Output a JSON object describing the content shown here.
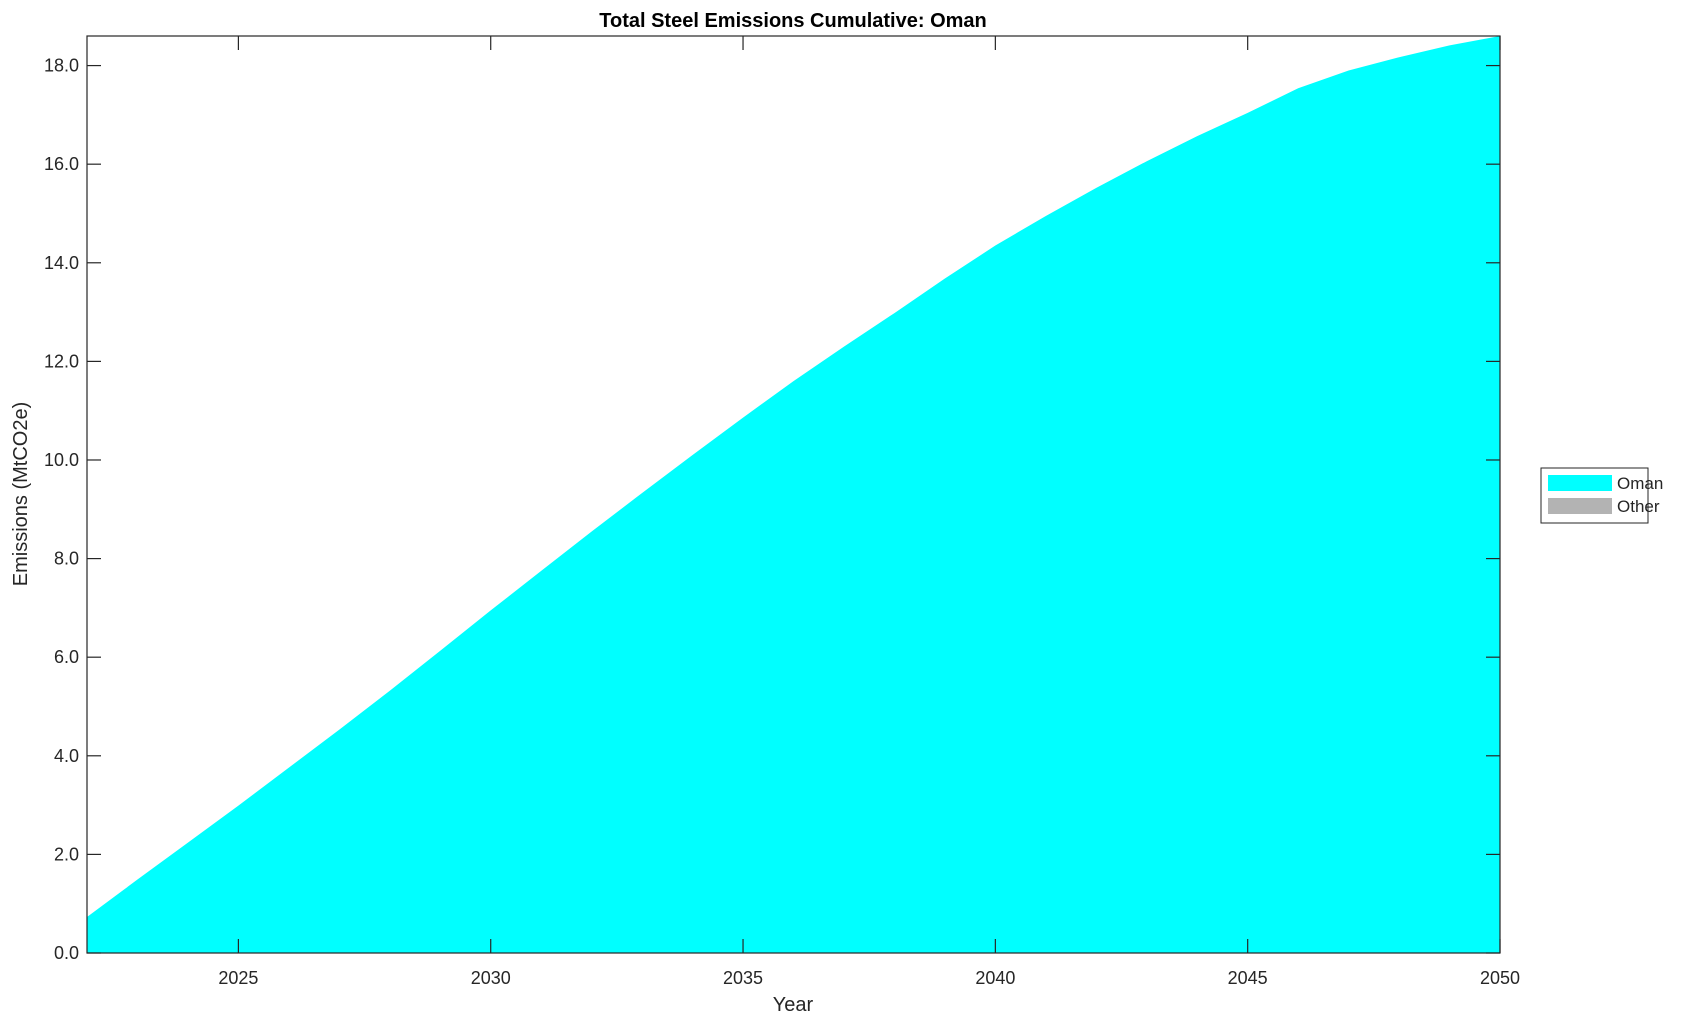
{
  "chart_data": {
    "type": "area",
    "title": "Total Steel Emissions Cumulative: Oman",
    "xlabel": "Year",
    "ylabel": "Emissions (MtCO2e)",
    "xlim": [
      2022,
      2050
    ],
    "ylim": [
      0,
      18.6
    ],
    "xticks": [
      "2025",
      "2030",
      "2035",
      "2040",
      "2045",
      "2050"
    ],
    "yticks": [
      "0.0",
      "2.0",
      "4.0",
      "6.0",
      "8.0",
      "10.0",
      "12.0",
      "14.0",
      "16.0",
      "18.0"
    ],
    "grid": false,
    "legend_position": "right",
    "x": [
      2022,
      2023,
      2024,
      2025,
      2026,
      2027,
      2028,
      2029,
      2030,
      2031,
      2032,
      2033,
      2034,
      2035,
      2036,
      2037,
      2038,
      2039,
      2040,
      2041,
      2042,
      2043,
      2044,
      2045,
      2046,
      2047,
      2048,
      2049,
      2050
    ],
    "series": [
      {
        "name": "Oman",
        "color": "#00FFFF",
        "values": [
          0.73,
          1.49,
          2.24,
          2.99,
          3.76,
          4.53,
          5.32,
          6.13,
          6.95,
          7.75,
          8.55,
          9.33,
          10.1,
          10.86,
          11.6,
          12.3,
          12.98,
          13.68,
          14.35,
          14.95,
          15.52,
          16.06,
          16.57,
          17.04,
          17.54,
          17.9,
          18.17,
          18.41,
          18.6
        ]
      },
      {
        "name": "Other",
        "color": "#B3B3B3",
        "values": [
          0,
          0,
          0,
          0,
          0,
          0,
          0,
          0,
          0,
          0,
          0,
          0,
          0,
          0,
          0,
          0,
          0,
          0,
          0,
          0,
          0,
          0,
          0,
          0,
          0,
          0,
          0,
          0,
          0
        ]
      }
    ]
  }
}
